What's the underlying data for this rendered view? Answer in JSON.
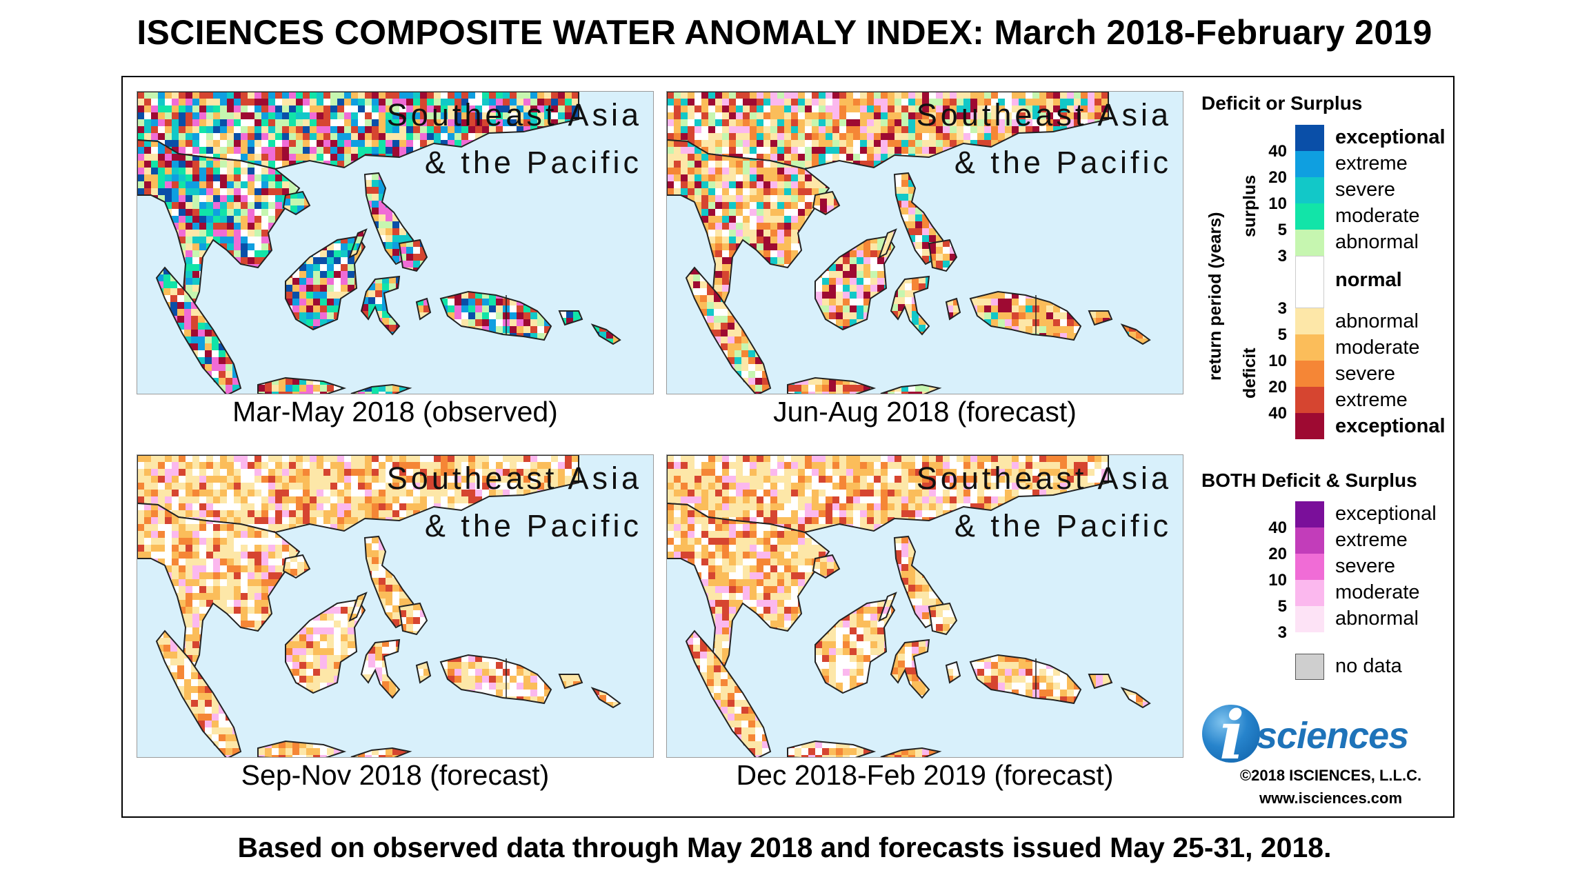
{
  "title": "ISCIENCES COMPOSITE WATER ANOMALY INDEX: March 2018-February 2019",
  "colors": {
    "ocean": "#d8f0fb",
    "land_normal": "#ffffff",
    "outline": "#222222"
  },
  "panels": [
    {
      "region_line1": "Southeast Asia",
      "region_line2": "& the Pacific",
      "caption": "Mar-May 2018 (observed)",
      "scheme": "mixed"
    },
    {
      "region_line1": "Southeast Asia",
      "region_line2": "& the Pacific",
      "caption": "Jun-Aug 2018 (forecast)",
      "scheme": "mostly-deficit"
    },
    {
      "region_line1": "Southeast Asia",
      "region_line2": "& the Pacific",
      "caption": "Sep-Nov 2018 (forecast)",
      "scheme": "deficit"
    },
    {
      "region_line1": "Southeast Asia",
      "region_line2": "& the Pacific",
      "caption": "Dec 2018-Feb 2019 (forecast)",
      "scheme": "deficit"
    }
  ],
  "legend": {
    "heading": "Deficit or Surplus",
    "axis_label": "return period (years)",
    "surplus_label": "surplus",
    "deficit_label": "deficit",
    "surplus_items": [
      {
        "label": "exceptional",
        "color": "#0a4fa8"
      },
      {
        "label": "extreme",
        "color": "#0f9fe0"
      },
      {
        "label": "severe",
        "color": "#12c8c8"
      },
      {
        "label": "moderate",
        "color": "#12e4a8"
      },
      {
        "label": "abnormal",
        "color": "#c6f6b0"
      }
    ],
    "normal_label": "normal",
    "deficit_items": [
      {
        "label": "abnormal",
        "color": "#fde7a8"
      },
      {
        "label": "moderate",
        "color": "#fbbd5a"
      },
      {
        "label": "severe",
        "color": "#f58636"
      },
      {
        "label": "extreme",
        "color": "#d64530"
      },
      {
        "label": "exceptional",
        "color": "#9e0a32"
      }
    ],
    "surplus_periods": [
      "40",
      "20",
      "10",
      "5",
      "3"
    ],
    "deficit_periods": [
      "3",
      "5",
      "10",
      "20",
      "40"
    ],
    "both_heading": "BOTH Deficit & Surplus",
    "both_items": [
      {
        "label": "exceptional",
        "color": "#7a0f9a"
      },
      {
        "label": "extreme",
        "color": "#c23dba"
      },
      {
        "label": "severe",
        "color": "#f06cd6"
      },
      {
        "label": "moderate",
        "color": "#fbb8ee"
      },
      {
        "label": "abnormal",
        "color": "#fde3f6"
      }
    ],
    "both_periods": [
      "40",
      "20",
      "10",
      "5",
      "3"
    ],
    "no_data_label": "no data",
    "no_data_color": "#cfcfcf"
  },
  "logo": {
    "letter": "i",
    "text": "sciences"
  },
  "copyright": "©2018 ISCIENCES, L.L.C.",
  "website": "www.isciences.com",
  "footer": "Based on observed data through May 2018 and forecasts issued May 25-31, 2018."
}
